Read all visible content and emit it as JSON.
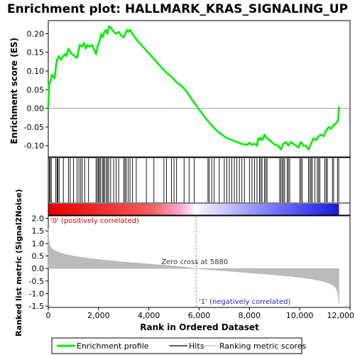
{
  "chart_data": {
    "type": "line",
    "title": "Enrichment plot: HALLMARK_KRAS_SIGNALING_UP",
    "top_panel": {
      "ylabel": "Enrichment score (ES)",
      "ylim": [
        -0.13,
        0.235
      ],
      "yticks": [
        0.2,
        0.15,
        0.1,
        0.05,
        0.0,
        -0.05,
        -0.1
      ],
      "ytick_labels": [
        "0.20",
        "0.15",
        "0.10",
        "0.05",
        "0.00",
        "-0.05",
        "-0.10"
      ],
      "series": [
        {
          "name": "Enrichment profile",
          "color": "#00ee00",
          "x": [
            0,
            30,
            80,
            150,
            250,
            320,
            350,
            420,
            500,
            650,
            720,
            800,
            880,
            950,
            1150,
            1250,
            1330,
            1420,
            1500,
            1560,
            1660,
            1740,
            1900,
            1970,
            2020,
            2100,
            2160,
            2230,
            2290,
            2350,
            2420,
            2500,
            2600,
            2700,
            2800,
            2900,
            3000,
            3060,
            3130,
            3180,
            3250,
            3350,
            3500,
            3700,
            3900,
            4100,
            4300,
            4500,
            4700,
            4900,
            5100,
            5300,
            5500,
            5700,
            5880,
            6100,
            6300,
            6500,
            6700,
            6900,
            7100,
            7300,
            7500,
            7700,
            7900,
            8000,
            8100,
            8200,
            8300,
            8350,
            8400,
            8450,
            8500,
            8550,
            8600,
            8700,
            8850,
            9000,
            9150,
            9250,
            9350,
            9450,
            9550,
            9650,
            9750,
            9850,
            9950,
            10050,
            10150,
            10250,
            10350,
            10450,
            10550,
            10650,
            10750,
            10850,
            10950,
            11050,
            11150,
            11250,
            11350,
            11450,
            11500,
            11530,
            11560
          ],
          "y": [
            0.0,
            0.065,
            0.07,
            0.09,
            0.08,
            0.12,
            0.13,
            0.14,
            0.13,
            0.145,
            0.14,
            0.16,
            0.15,
            0.145,
            0.135,
            0.17,
            0.165,
            0.175,
            0.16,
            0.17,
            0.165,
            0.17,
            0.145,
            0.17,
            0.175,
            0.2,
            0.19,
            0.205,
            0.21,
            0.2,
            0.22,
            0.215,
            0.205,
            0.2,
            0.205,
            0.195,
            0.19,
            0.2,
            0.21,
            0.205,
            0.21,
            0.2,
            0.185,
            0.17,
            0.155,
            0.14,
            0.125,
            0.11,
            0.095,
            0.085,
            0.07,
            0.06,
            0.045,
            0.025,
            0.008,
            -0.012,
            -0.03,
            -0.045,
            -0.06,
            -0.07,
            -0.08,
            -0.085,
            -0.09,
            -0.095,
            -0.098,
            -0.092,
            -0.098,
            -0.095,
            -0.1,
            -0.08,
            -0.085,
            -0.078,
            -0.085,
            -0.08,
            -0.07,
            -0.08,
            -0.088,
            -0.097,
            -0.1,
            -0.11,
            -0.095,
            -0.09,
            -0.1,
            -0.09,
            -0.095,
            -0.1,
            -0.105,
            -0.09,
            -0.1,
            -0.1,
            -0.11,
            -0.095,
            -0.08,
            -0.085,
            -0.075,
            -0.07,
            -0.075,
            -0.06,
            -0.05,
            -0.055,
            -0.045,
            -0.04,
            -0.035,
            -0.03,
            0.005
          ]
        }
      ],
      "zero_line": 0.0
    },
    "hits": {
      "name": "Hits",
      "color": "#000000",
      "positions": [
        40,
        80,
        120,
        300,
        350,
        380,
        430,
        600,
        800,
        870,
        1000,
        1150,
        1220,
        1290,
        1350,
        1450,
        1600,
        1900,
        1950,
        2000,
        2030,
        2080,
        2150,
        2200,
        2230,
        2300,
        2350,
        2400,
        2480,
        2600,
        2700,
        2800,
        3000,
        3050,
        3100,
        3180,
        3250,
        3350,
        3500,
        3900,
        4200,
        4600,
        4700,
        4900,
        5000,
        5100,
        5400,
        5600,
        5800,
        6350,
        6400,
        6500,
        6600,
        6800,
        7000,
        7100,
        7200,
        7300,
        7400,
        7500,
        7600,
        7700,
        7800,
        8000,
        8100,
        8200,
        8300,
        8400,
        8450,
        8500,
        8600,
        8650,
        8700,
        9200,
        9250,
        9300,
        9350,
        9400,
        9500,
        9550,
        9600,
        10000,
        10050,
        10100,
        10350,
        10400,
        10450,
        10500,
        10600,
        10700,
        10750,
        10800,
        11000,
        11050,
        11100,
        11300,
        11350,
        11500,
        11550
      ]
    },
    "bottom_panel": {
      "ylabel": "Ranked list metric (Signal2Noise)",
      "xlabel": "Rank in Ordered Dataset",
      "ylim": [
        -1.55,
        2.1
      ],
      "yticks": [
        2.0,
        1.5,
        1.0,
        0.5,
        0.0,
        -0.5,
        -1.0,
        -1.5
      ],
      "ytick_labels": [
        "2.0",
        "1.5",
        "1.0",
        "0.5",
        "0.0",
        "-0.5",
        "-1.0",
        "-1.5"
      ],
      "xlim": [
        0,
        12000
      ],
      "xticks": [
        0,
        2000,
        4000,
        6000,
        8000,
        10000,
        12000
      ],
      "xtick_labels": [
        "0",
        "2,000",
        "4,000",
        "6,000",
        "8,000",
        "10,000",
        "12,000"
      ],
      "metric_profile": {
        "x": [
          0,
          20,
          50,
          100,
          200,
          400,
          700,
          1000,
          1500,
          2000,
          2500,
          3000,
          3500,
          4000,
          4500,
          5000,
          5500,
          5880,
          6500,
          7000,
          7500,
          8000,
          8500,
          9000,
          9500,
          10000,
          10500,
          10800,
          11000,
          11200,
          11350,
          11450,
          11520,
          11560
        ],
        "y": [
          1.6,
          1.1,
          0.95,
          0.85,
          0.75,
          0.65,
          0.56,
          0.5,
          0.42,
          0.36,
          0.31,
          0.26,
          0.22,
          0.18,
          0.14,
          0.1,
          0.05,
          0.0,
          -0.05,
          -0.09,
          -0.13,
          -0.17,
          -0.21,
          -0.25,
          -0.3,
          -0.35,
          -0.42,
          -0.48,
          -0.53,
          -0.6,
          -0.68,
          -0.8,
          -1.0,
          -1.4
        ]
      },
      "zero_cross_label": "Zero cross at 5880",
      "zero_cross_x": 5880,
      "pos_label": "'0' (positively correlated)",
      "neg_label": "'1' (negatively correlated)"
    },
    "n_total": 11560
  },
  "legend": {
    "items": [
      {
        "label": "Enrichment profile",
        "color": "#00ee00"
      },
      {
        "label": "Hits",
        "color": "#000000"
      },
      {
        "label": "Ranking metric scores",
        "color": "#bbbbbb"
      }
    ]
  },
  "colors": {
    "pos_label": "#d40000",
    "neg_label": "#2222cc",
    "metric_fill": "#bbbbbb"
  }
}
